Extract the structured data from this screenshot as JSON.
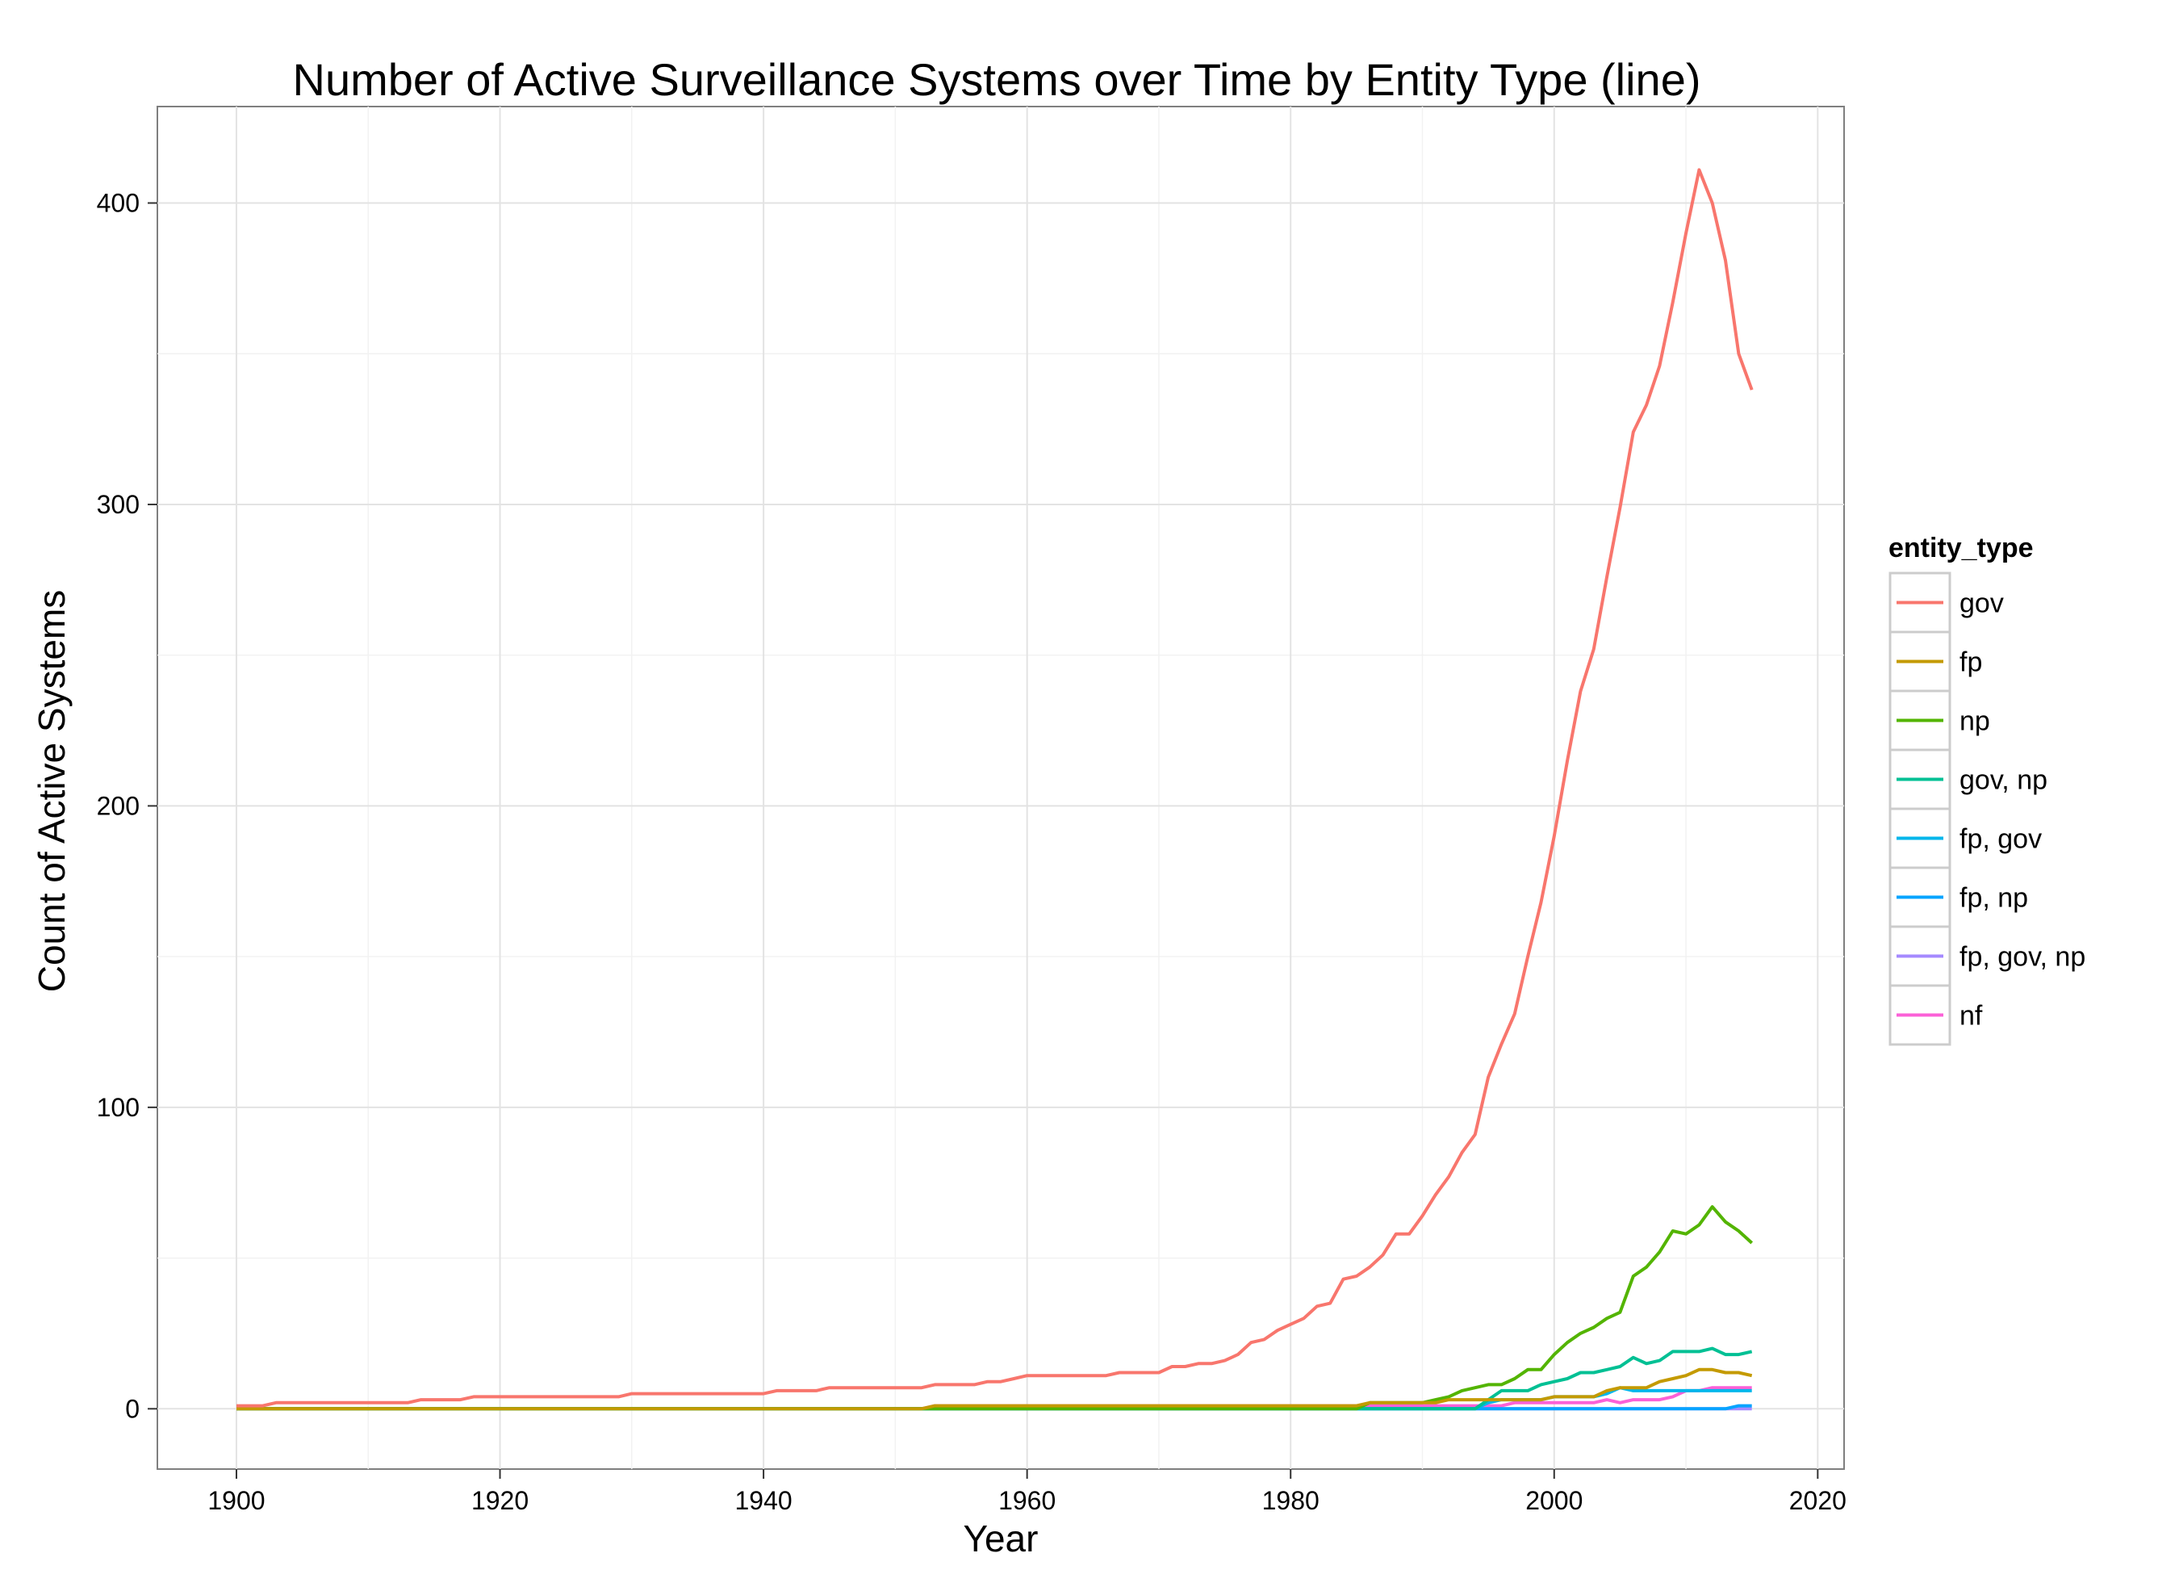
{
  "chart_data": {
    "type": "line",
    "title": "Number of Active Surveillance Systems over Time by Entity Type (line)",
    "xlabel": "Year",
    "ylabel": "Count of Active Systems",
    "xlim": [
      1894,
      2022
    ],
    "ylim": [
      -20,
      432
    ],
    "x_ticks": [
      1900,
      1920,
      1940,
      1960,
      1980,
      2000,
      2020
    ],
    "y_ticks": [
      0,
      100,
      200,
      300,
      400
    ],
    "grid": true,
    "legend": {
      "title": "entity_type",
      "position": "right"
    },
    "series": [
      {
        "name": "gov",
        "color": "#F8766D",
        "points": [
          [
            1900,
            1
          ],
          [
            1902,
            1
          ],
          [
            1903,
            2
          ],
          [
            1913,
            2
          ],
          [
            1914,
            3
          ],
          [
            1917,
            3
          ],
          [
            1918,
            4
          ],
          [
            1929,
            4
          ],
          [
            1930,
            5
          ],
          [
            1940,
            5
          ],
          [
            1941,
            6
          ],
          [
            1944,
            6
          ],
          [
            1945,
            7
          ],
          [
            1952,
            7
          ],
          [
            1953,
            8
          ],
          [
            1956,
            8
          ],
          [
            1957,
            9
          ],
          [
            1958,
            9
          ],
          [
            1959,
            10
          ],
          [
            1960,
            11
          ],
          [
            1966,
            11
          ],
          [
            1967,
            12
          ],
          [
            1970,
            12
          ],
          [
            1971,
            14
          ],
          [
            1972,
            14
          ],
          [
            1973,
            15
          ],
          [
            1974,
            15
          ],
          [
            1975,
            16
          ],
          [
            1976,
            18
          ],
          [
            1977,
            22
          ],
          [
            1978,
            23
          ],
          [
            1979,
            26
          ],
          [
            1980,
            28
          ],
          [
            1981,
            30
          ],
          [
            1982,
            34
          ],
          [
            1983,
            35
          ],
          [
            1984,
            43
          ],
          [
            1985,
            44
          ],
          [
            1986,
            47
          ],
          [
            1987,
            51
          ],
          [
            1988,
            58
          ],
          [
            1989,
            58
          ],
          [
            1990,
            64
          ],
          [
            1991,
            71
          ],
          [
            1992,
            77
          ],
          [
            1993,
            85
          ],
          [
            1994,
            91
          ],
          [
            1995,
            110
          ],
          [
            1996,
            121
          ],
          [
            1997,
            131
          ],
          [
            1998,
            150
          ],
          [
            1999,
            168
          ],
          [
            2000,
            190
          ],
          [
            2001,
            215
          ],
          [
            2002,
            238
          ],
          [
            2003,
            252
          ],
          [
            2004,
            276
          ],
          [
            2005,
            299
          ],
          [
            2006,
            324
          ],
          [
            2007,
            333
          ],
          [
            2008,
            346
          ],
          [
            2009,
            367
          ],
          [
            2010,
            390
          ],
          [
            2011,
            411
          ],
          [
            2012,
            400
          ],
          [
            2013,
            381
          ],
          [
            2014,
            350
          ],
          [
            2015,
            338
          ]
        ]
      },
      {
        "name": "fp",
        "color": "#C49A00",
        "points": [
          [
            1900,
            0
          ],
          [
            1952,
            0
          ],
          [
            1953,
            1
          ],
          [
            1985,
            1
          ],
          [
            1986,
            2
          ],
          [
            1991,
            2
          ],
          [
            1992,
            3
          ],
          [
            1999,
            3
          ],
          [
            2000,
            4
          ],
          [
            2003,
            4
          ],
          [
            2004,
            6
          ],
          [
            2005,
            7
          ],
          [
            2007,
            7
          ],
          [
            2008,
            9
          ],
          [
            2009,
            10
          ],
          [
            2010,
            11
          ],
          [
            2011,
            13
          ],
          [
            2012,
            13
          ],
          [
            2013,
            12
          ],
          [
            2014,
            12
          ],
          [
            2015,
            11
          ]
        ]
      },
      {
        "name": "np",
        "color": "#53B400",
        "points": [
          [
            1900,
            0
          ],
          [
            1985,
            0
          ],
          [
            1986,
            2
          ],
          [
            1990,
            2
          ],
          [
            1991,
            3
          ],
          [
            1992,
            4
          ],
          [
            1993,
            6
          ],
          [
            1994,
            7
          ],
          [
            1995,
            8
          ],
          [
            1996,
            8
          ],
          [
            1997,
            10
          ],
          [
            1998,
            13
          ],
          [
            1999,
            13
          ],
          [
            2000,
            18
          ],
          [
            2001,
            22
          ],
          [
            2002,
            25
          ],
          [
            2003,
            27
          ],
          [
            2004,
            30
          ],
          [
            2005,
            32
          ],
          [
            2006,
            44
          ],
          [
            2007,
            47
          ],
          [
            2008,
            52
          ],
          [
            2009,
            59
          ],
          [
            2010,
            58
          ],
          [
            2011,
            61
          ],
          [
            2012,
            67
          ],
          [
            2013,
            62
          ],
          [
            2014,
            59
          ],
          [
            2015,
            55
          ]
        ]
      },
      {
        "name": "gov, np",
        "color": "#00C094",
        "points": [
          [
            1900,
            0
          ],
          [
            1994,
            0
          ],
          [
            1995,
            3
          ],
          [
            1996,
            6
          ],
          [
            1998,
            6
          ],
          [
            1999,
            8
          ],
          [
            2000,
            9
          ],
          [
            2001,
            10
          ],
          [
            2002,
            12
          ],
          [
            2003,
            12
          ],
          [
            2004,
            13
          ],
          [
            2005,
            14
          ],
          [
            2006,
            17
          ],
          [
            2007,
            15
          ],
          [
            2008,
            16
          ],
          [
            2009,
            19
          ],
          [
            2011,
            19
          ],
          [
            2012,
            20
          ],
          [
            2013,
            18
          ],
          [
            2014,
            18
          ],
          [
            2015,
            19
          ]
        ]
      },
      {
        "name": "fp, gov",
        "color": "#00B6EB",
        "points": [
          [
            1900,
            0
          ],
          [
            1994,
            0
          ],
          [
            1995,
            2
          ],
          [
            1996,
            3
          ],
          [
            1999,
            3
          ],
          [
            2000,
            4
          ],
          [
            2003,
            4
          ],
          [
            2004,
            5
          ],
          [
            2005,
            7
          ],
          [
            2006,
            6
          ],
          [
            2015,
            6
          ]
        ]
      },
      {
        "name": "fp, np",
        "color": "#06A4FF",
        "points": [
          [
            1900,
            0
          ],
          [
            2013,
            0
          ],
          [
            2014,
            1
          ],
          [
            2015,
            1
          ]
        ]
      },
      {
        "name": "fp, gov, np",
        "color": "#A58AFF",
        "points": [
          [
            1900,
            0
          ],
          [
            2015,
            0
          ]
        ]
      },
      {
        "name": "nf",
        "color": "#FB61D7",
        "points": [
          [
            1900,
            0
          ],
          [
            1952,
            0
          ],
          [
            1953,
            1
          ],
          [
            1995,
            1
          ],
          [
            1996,
            1
          ],
          [
            1997,
            2
          ],
          [
            2003,
            2
          ],
          [
            2004,
            3
          ],
          [
            2005,
            2
          ],
          [
            2006,
            3
          ],
          [
            2008,
            3
          ],
          [
            2009,
            4
          ],
          [
            2010,
            6
          ],
          [
            2011,
            6
          ],
          [
            2012,
            7
          ],
          [
            2015,
            7
          ]
        ]
      }
    ]
  }
}
